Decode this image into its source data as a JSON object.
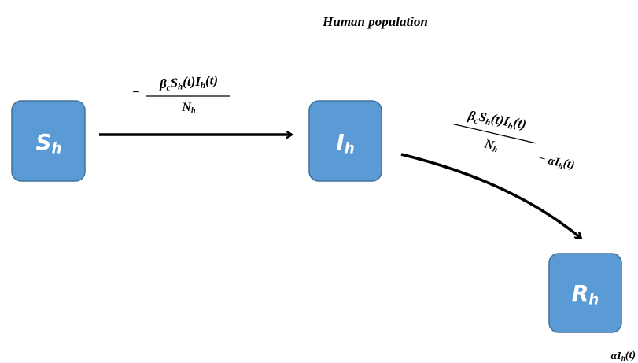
{
  "title": "Human population",
  "nodes": [
    {
      "label": [
        {
          "t": "S"
        },
        {
          "t": "h",
          "sub": true
        }
      ]
    },
    {
      "label": [
        {
          "t": "I"
        },
        {
          "t": "h",
          "sub": true
        }
      ]
    },
    {
      "label": [
        {
          "t": "R"
        },
        {
          "t": "h",
          "sub": true
        }
      ]
    }
  ],
  "edges": [
    {
      "sign": "−",
      "numerator": [
        {
          "t": "β"
        },
        {
          "t": "c",
          "sub": true
        },
        {
          "t": "S"
        },
        {
          "t": "h",
          "sub": true
        },
        {
          "t": "(t)I"
        },
        {
          "t": "h",
          "sub": true
        },
        {
          "t": "(t)"
        }
      ],
      "denominator": [
        {
          "t": "N"
        },
        {
          "t": "h",
          "sub": true
        }
      ]
    },
    {
      "numerator": [
        {
          "t": "β"
        },
        {
          "t": "c",
          "sub": true
        },
        {
          "t": "S"
        },
        {
          "t": "h",
          "sub": true
        },
        {
          "t": "(t)I"
        },
        {
          "t": "h",
          "sub": true
        },
        {
          "t": "(t)"
        }
      ],
      "denominator": [
        {
          "t": "N"
        },
        {
          "t": "h",
          "sub": true
        }
      ],
      "extra": [
        {
          "t": "− αI"
        },
        {
          "t": "h",
          "sub": true
        },
        {
          "t": "(t)"
        }
      ]
    }
  ],
  "outflow": [
    {
      "t": "αI"
    },
    {
      "t": "h",
      "sub": true
    },
    {
      "t": "(t)"
    }
  ]
}
